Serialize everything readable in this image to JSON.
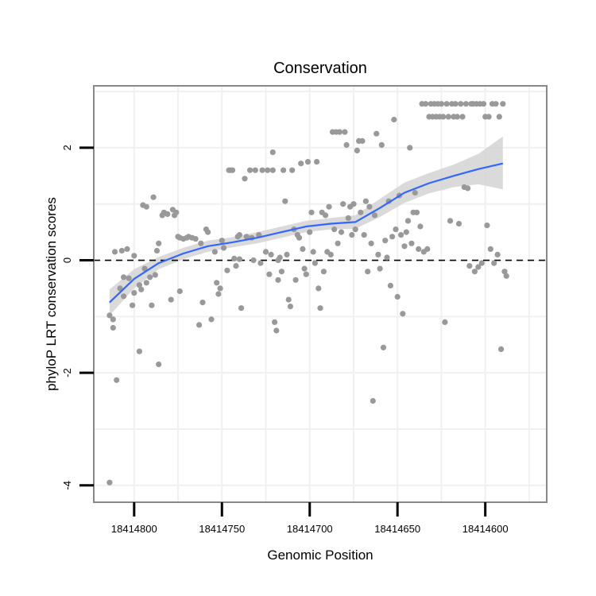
{
  "chart_data": {
    "type": "scatter",
    "title": "Conservation",
    "xlabel": "Genomic Position",
    "ylabel": "phyloP LRT conservation scores",
    "x_reversed": true,
    "xlim": [
      18414823,
      18414565
    ],
    "ylim": [
      -4.3,
      3.1
    ],
    "x_ticks": [
      18414800,
      18414750,
      18414700,
      18414650,
      18414600
    ],
    "x_tick_labels": [
      "18414800",
      "18414750",
      "18414700",
      "18414650",
      "18414600"
    ],
    "y_ticks": [
      -4,
      -2,
      0,
      2
    ],
    "y_tick_labels": [
      "-4",
      "-2",
      "0",
      "2"
    ],
    "grid": true,
    "reference_line": {
      "y": 0,
      "style": "dashed"
    },
    "colors": {
      "points": "#999999",
      "smooth_line": "#3366ff",
      "ribbon": "#d3d3d3",
      "grid": "#f0f0f0",
      "panel_border": "#888888",
      "axis_ticks": "#000000"
    },
    "points": [
      [
        18414814,
        -3.95
      ],
      [
        18414814,
        -0.98
      ],
      [
        18414812,
        -1.2
      ],
      [
        18414812,
        -1.05
      ],
      [
        18414810,
        -2.13
      ],
      [
        18414811,
        0.15
      ],
      [
        18414808,
        -0.5
      ],
      [
        18414807,
        0.17
      ],
      [
        18414806,
        -0.3
      ],
      [
        18414806,
        -0.64
      ],
      [
        18414804,
        0.2
      ],
      [
        18414803,
        -0.32
      ],
      [
        18414801,
        -0.8
      ],
      [
        18414800,
        0.08
      ],
      [
        18414800,
        -0.58
      ],
      [
        18414797,
        -1.62
      ],
      [
        18414797,
        -0.44
      ],
      [
        18414796,
        -0.52
      ],
      [
        18414795,
        0.98
      ],
      [
        18414794,
        -0.15
      ],
      [
        18414793,
        0.95
      ],
      [
        18414793,
        -0.4
      ],
      [
        18414791,
        -0.3
      ],
      [
        18414790,
        -0.8
      ],
      [
        18414789,
        1.12
      ],
      [
        18414788,
        -0.26
      ],
      [
        18414787,
        0.17
      ],
      [
        18414786,
        -1.85
      ],
      [
        18414786,
        0.3
      ],
      [
        18414784,
        0.8
      ],
      [
        18414783,
        0.85
      ],
      [
        18414781,
        0.82
      ],
      [
        18414779,
        -0.7
      ],
      [
        18414778,
        0.9
      ],
      [
        18414777,
        0.8
      ],
      [
        18414776,
        0.85
      ],
      [
        18414775,
        0.42
      ],
      [
        18414774,
        -0.55
      ],
      [
        18414774,
        0.4
      ],
      [
        18414772,
        0.38
      ],
      [
        18414770,
        0.4
      ],
      [
        18414769,
        0.42
      ],
      [
        18414767,
        0.4
      ],
      [
        18414765,
        0.38
      ],
      [
        18414763,
        -1.15
      ],
      [
        18414762,
        0.3
      ],
      [
        18414761,
        -0.75
      ],
      [
        18414759,
        0.55
      ],
      [
        18414758,
        0.5
      ],
      [
        18414756,
        -1.05
      ],
      [
        18414754,
        0.15
      ],
      [
        18414753,
        -0.4
      ],
      [
        18414752,
        -0.6
      ],
      [
        18414751,
        -0.5
      ],
      [
        18414750,
        0.35
      ],
      [
        18414749,
        0.22
      ],
      [
        18414747,
        -0.18
      ],
      [
        18414746,
        1.6
      ],
      [
        18414745,
        1.6
      ],
      [
        18414744,
        1.6
      ],
      [
        18414743,
        0.03
      ],
      [
        18414742,
        -0.1
      ],
      [
        18414741,
        0.42
      ],
      [
        18414740,
        0.45
      ],
      [
        18414740,
        0.02
      ],
      [
        18414739,
        -0.85
      ],
      [
        18414737,
        1.45
      ],
      [
        18414736,
        0.42
      ],
      [
        18414734,
        1.6
      ],
      [
        18414733,
        0.4
      ],
      [
        18414732,
        0.0
      ],
      [
        18414731,
        1.6
      ],
      [
        18414729,
        0.45
      ],
      [
        18414728,
        -0.05
      ],
      [
        18414727,
        1.6
      ],
      [
        18414725,
        0.15
      ],
      [
        18414724,
        1.6
      ],
      [
        18414723,
        -0.25
      ],
      [
        18414722,
        0.1
      ],
      [
        18414721,
        1.6
      ],
      [
        18414721,
        1.92
      ],
      [
        18414720,
        -1.1
      ],
      [
        18414719,
        -1.25
      ],
      [
        18414718,
        -0.35
      ],
      [
        18414718,
        0.0
      ],
      [
        18414717,
        0.05
      ],
      [
        18414716,
        -0.2
      ],
      [
        18414715,
        1.6
      ],
      [
        18414714,
        1.05
      ],
      [
        18414713,
        0.1
      ],
      [
        18414712,
        -0.7
      ],
      [
        18414711,
        -0.82
      ],
      [
        18414710,
        1.6
      ],
      [
        18414709,
        0.55
      ],
      [
        18414708,
        -0.35
      ],
      [
        18414707,
        0.45
      ],
      [
        18414706,
        0.4
      ],
      [
        18414705,
        1.72
      ],
      [
        18414704,
        0.2
      ],
      [
        18414703,
        -0.15
      ],
      [
        18414702,
        -0.25
      ],
      [
        18414701,
        1.75
      ],
      [
        18414700,
        0.5
      ],
      [
        18414699,
        0.85
      ],
      [
        18414698,
        0.15
      ],
      [
        18414697,
        -0.05
      ],
      [
        18414696,
        1.75
      ],
      [
        18414695,
        -0.5
      ],
      [
        18414694,
        -0.85
      ],
      [
        18414693,
        0.85
      ],
      [
        18414692,
        -0.2
      ],
      [
        18414691,
        0.8
      ],
      [
        18414690,
        0.15
      ],
      [
        18414689,
        0.95
      ],
      [
        18414688,
        0.1
      ],
      [
        18414687,
        2.28
      ],
      [
        18414686,
        0.55
      ],
      [
        18414685,
        2.28
      ],
      [
        18414684,
        0.3
      ],
      [
        18414683,
        2.28
      ],
      [
        18414682,
        0.5
      ],
      [
        18414681,
        1.0
      ],
      [
        18414680,
        2.28
      ],
      [
        18414679,
        2.05
      ],
      [
        18414678,
        0.75
      ],
      [
        18414677,
        0.95
      ],
      [
        18414676,
        0.45
      ],
      [
        18414675,
        1.0
      ],
      [
        18414674,
        0.55
      ],
      [
        18414673,
        1.95
      ],
      [
        18414672,
        2.12
      ],
      [
        18414671,
        0.85
      ],
      [
        18414670,
        2.12
      ],
      [
        18414669,
        0.45
      ],
      [
        18414668,
        1.05
      ],
      [
        18414667,
        -0.2
      ],
      [
        18414666,
        0.95
      ],
      [
        18414665,
        0.3
      ],
      [
        18414664,
        -2.5
      ],
      [
        18414663,
        0.8
      ],
      [
        18414662,
        2.25
      ],
      [
        18414661,
        0.1
      ],
      [
        18414660,
        -0.15
      ],
      [
        18414659,
        2.05
      ],
      [
        18414658,
        -1.55
      ],
      [
        18414657,
        0.35
      ],
      [
        18414656,
        0.05
      ],
      [
        18414655,
        1.05
      ],
      [
        18414654,
        -0.45
      ],
      [
        18414653,
        0.42
      ],
      [
        18414652,
        2.5
      ],
      [
        18414651,
        0.55
      ],
      [
        18414650,
        -0.65
      ],
      [
        18414649,
        1.15
      ],
      [
        18414648,
        0.45
      ],
      [
        18414647,
        -0.95
      ],
      [
        18414646,
        0.25
      ],
      [
        18414645,
        0.5
      ],
      [
        18414644,
        0.7
      ],
      [
        18414643,
        2.0
      ],
      [
        18414642,
        0.3
      ],
      [
        18414641,
        0.85
      ],
      [
        18414640,
        1.2
      ],
      [
        18414639,
        0.85
      ],
      [
        18414638,
        0.2
      ],
      [
        18414637,
        0.6
      ],
      [
        18414636,
        2.78
      ],
      [
        18414635,
        0.15
      ],
      [
        18414634,
        2.78
      ],
      [
        18414633,
        0.2
      ],
      [
        18414632,
        2.55
      ],
      [
        18414631,
        2.78
      ],
      [
        18414630,
        2.55
      ],
      [
        18414629,
        2.78
      ],
      [
        18414628,
        2.55
      ],
      [
        18414627,
        2.78
      ],
      [
        18414626,
        2.55
      ],
      [
        18414625,
        2.78
      ],
      [
        18414624,
        2.55
      ],
      [
        18414623,
        -1.1
      ],
      [
        18414622,
        2.78
      ],
      [
        18414621,
        2.55
      ],
      [
        18414620,
        0.7
      ],
      [
        18414619,
        2.78
      ],
      [
        18414618,
        2.55
      ],
      [
        18414617,
        2.78
      ],
      [
        18414616,
        2.55
      ],
      [
        18414615,
        0.65
      ],
      [
        18414614,
        2.78
      ],
      [
        18414613,
        2.55
      ],
      [
        18414612,
        1.3
      ],
      [
        18414611,
        2.78
      ],
      [
        18414610,
        1.28
      ],
      [
        18414609,
        -0.1
      ],
      [
        18414608,
        2.78
      ],
      [
        18414607,
        2.78
      ],
      [
        18414606,
        -0.2
      ],
      [
        18414605,
        2.78
      ],
      [
        18414604,
        -0.12
      ],
      [
        18414603,
        2.78
      ],
      [
        18414602,
        -0.05
      ],
      [
        18414601,
        2.78
      ],
      [
        18414600,
        2.55
      ],
      [
        18414599,
        0.62
      ],
      [
        18414598,
        2.55
      ],
      [
        18414597,
        0.2
      ],
      [
        18414596,
        2.78
      ],
      [
        18414595,
        -0.05
      ],
      [
        18414594,
        2.78
      ],
      [
        18414593,
        0.1
      ],
      [
        18414592,
        2.55
      ],
      [
        18414591,
        -1.58
      ],
      [
        18414590,
        2.78
      ],
      [
        18414589,
        -0.2
      ],
      [
        18414588,
        -0.28
      ]
    ],
    "smooth": {
      "x": [
        18414814,
        18414800,
        18414786,
        18414772,
        18414758,
        18414744,
        18414730,
        18414716,
        18414702,
        18414688,
        18414674,
        18414660,
        18414646,
        18414632,
        18414618,
        18414604,
        18414590
      ],
      "y": [
        -0.75,
        -0.33,
        -0.05,
        0.12,
        0.25,
        0.32,
        0.4,
        0.5,
        0.6,
        0.65,
        0.68,
        0.93,
        1.2,
        1.37,
        1.5,
        1.62,
        1.72
      ],
      "lower": [
        -0.98,
        -0.5,
        -0.16,
        0.02,
        0.15,
        0.23,
        0.3,
        0.4,
        0.5,
        0.55,
        0.56,
        0.77,
        1.02,
        1.19,
        1.3,
        1.35,
        1.26
      ],
      "upper": [
        -0.52,
        -0.16,
        0.06,
        0.22,
        0.35,
        0.41,
        0.5,
        0.6,
        0.7,
        0.75,
        0.8,
        1.09,
        1.38,
        1.55,
        1.7,
        1.89,
        2.2
      ]
    }
  }
}
